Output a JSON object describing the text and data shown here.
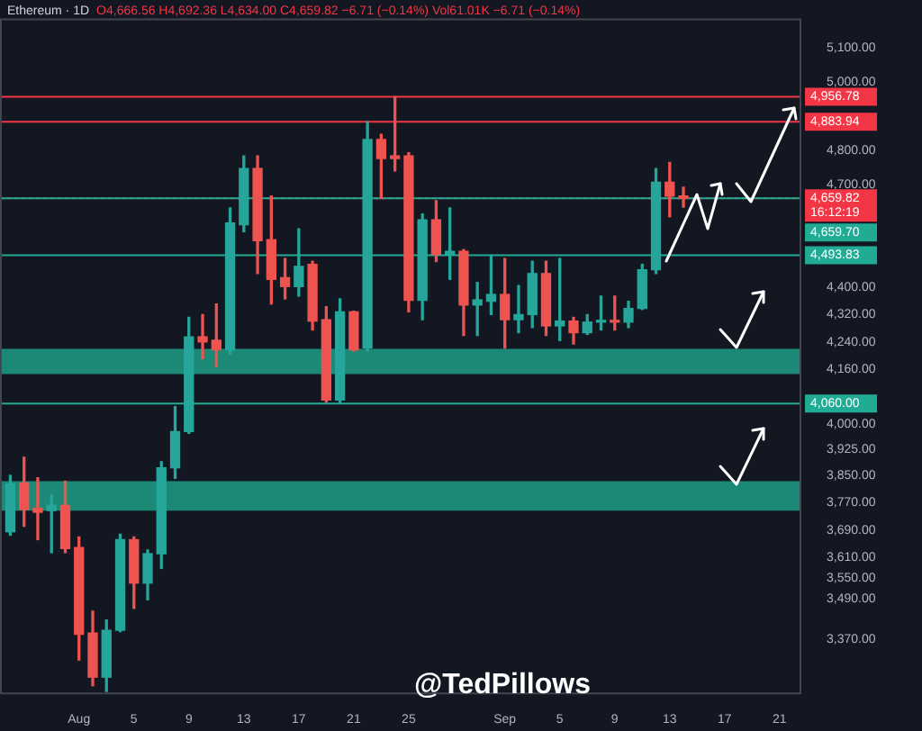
{
  "chart_data": {
    "type": "candlestick",
    "title": "Ethereum · 1D",
    "subtitle": "O4,666.56 H4,692.36 L4,634.00 C4,659.82 −6.71 (−0.14%) Vol61.01K −6.71 (−0.14%)",
    "x": [
      "--07-27",
      "--07-28",
      "--07-29",
      "--07-30",
      "--07-31",
      "--08-01",
      "--08-02",
      "--08-03",
      "--08-04",
      "--08-05",
      "--08-06",
      "--08-07",
      "--08-08",
      "--08-09",
      "--08-10",
      "--08-11",
      "--08-12",
      "--08-13",
      "--08-14",
      "--08-15",
      "--08-16",
      "--08-17",
      "--08-18",
      "--08-19",
      "--08-20",
      "--08-21",
      "--08-22",
      "--08-23",
      "--08-24",
      "--08-25",
      "--08-26",
      "--08-27",
      "--08-28",
      "--08-29",
      "--08-30",
      "--08-31",
      "--09-01",
      "--09-02",
      "--09-03",
      "--09-04",
      "--09-05",
      "--09-06",
      "--09-07",
      "--09-08",
      "--09-09",
      "--09-10",
      "--09-11",
      "--09-12",
      "--09-13",
      "--09-14"
    ],
    "ohlc": [
      [
        3685,
        3850,
        3675,
        3825
      ],
      [
        3828,
        3903,
        3701,
        3750
      ],
      [
        3754,
        3843,
        3662,
        3742
      ],
      [
        3747,
        3793,
        3624,
        3762
      ],
      [
        3762,
        3833,
        3624,
        3636
      ],
      [
        3639,
        3670,
        3310,
        3385
      ],
      [
        3389,
        3453,
        3235,
        3260
      ],
      [
        3260,
        3427,
        3218,
        3397
      ],
      [
        3397,
        3678,
        3393,
        3662
      ],
      [
        3662,
        3670,
        3461,
        3535
      ],
      [
        3535,
        3632,
        3486,
        3621
      ],
      [
        3621,
        3890,
        3578,
        3872
      ],
      [
        3872,
        4051,
        3841,
        3978
      ],
      [
        3978,
        4312,
        3973,
        4255
      ],
      [
        4255,
        4320,
        4191,
        4240
      ],
      [
        4245,
        4351,
        4168,
        4217
      ],
      [
        4217,
        4632,
        4205,
        4588
      ],
      [
        4583,
        4784,
        4562,
        4747
      ],
      [
        4747,
        4784,
        4440,
        4536
      ],
      [
        4539,
        4667,
        4351,
        4423
      ],
      [
        4428,
        4484,
        4366,
        4402
      ],
      [
        4402,
        4571,
        4374,
        4461
      ],
      [
        4467,
        4476,
        4275,
        4301
      ],
      [
        4305,
        4343,
        4064,
        4070
      ],
      [
        4070,
        4366,
        4060,
        4328
      ],
      [
        4328,
        4330,
        4214,
        4217
      ],
      [
        4222,
        4883.94,
        4214,
        4832
      ],
      [
        4832,
        4847,
        4660,
        4776
      ],
      [
        4784,
        4956.78,
        4740,
        4776
      ],
      [
        4784,
        4793,
        4328,
        4362
      ],
      [
        4362,
        4614,
        4305,
        4597
      ],
      [
        4597,
        4653,
        4475,
        4496
      ],
      [
        4496,
        4632,
        4423,
        4505
      ],
      [
        4505,
        4510,
        4259,
        4348
      ],
      [
        4348,
        4414,
        4259,
        4363
      ],
      [
        4359,
        4493.83,
        4320,
        4379
      ],
      [
        4379,
        4484,
        4222,
        4305
      ],
      [
        4305,
        4405,
        4267,
        4320
      ],
      [
        4320,
        4476,
        4282,
        4440
      ],
      [
        4440,
        4476,
        4259,
        4287
      ],
      [
        4287,
        4484,
        4244,
        4301
      ],
      [
        4301,
        4312,
        4234,
        4267
      ],
      [
        4267,
        4320,
        4262,
        4298
      ],
      [
        4298,
        4374,
        4275,
        4301
      ],
      [
        4301,
        4374,
        4275,
        4298
      ],
      [
        4298,
        4359,
        4282,
        4338
      ],
      [
        4338,
        4467,
        4335,
        4451
      ],
      [
        4451,
        4747,
        4440,
        4707
      ],
      [
        4707,
        4765,
        4606,
        4666.56
      ],
      [
        4666.56,
        4692.36,
        4634.0,
        4659.82
      ]
    ],
    "colors": [
      "#26a69a",
      "#ef5350",
      "#ef5350",
      "#26a69a",
      "#ef5350",
      "#ef5350",
      "#ef5350",
      "#26a69a",
      "#26a69a",
      "#ef5350",
      "#26a69a",
      "#26a69a",
      "#26a69a",
      "#26a69a",
      "#ef5350",
      "#ef5350",
      "#26a69a",
      "#26a69a",
      "#ef5350",
      "#ef5350",
      "#ef5350",
      "#26a69a",
      "#ef5350",
      "#ef5350",
      "#26a69a",
      "#ef5350",
      "#26a69a",
      "#ef5350",
      "#ef5350",
      "#ef5350",
      "#26a69a",
      "#ef5350",
      "#26a69a",
      "#ef5350",
      "#26a69a",
      "#26a69a",
      "#ef5350",
      "#26a69a",
      "#26a69a",
      "#ef5350",
      "#26a69a",
      "#ef5350",
      "#26a69a",
      "#26a69a",
      "#ef5350",
      "#26a69a",
      "#26a69a",
      "#26a69a",
      "#ef5350",
      "#ef5350"
    ],
    "xlim": [
      "--07-26T06:00",
      "--09-22T14:00"
    ],
    "xticks": [
      {
        "value": "--08-01",
        "label": "Aug"
      },
      {
        "value": "--08-05",
        "label": "5"
      },
      {
        "value": "--08-09",
        "label": "9"
      },
      {
        "value": "--08-13",
        "label": "13"
      },
      {
        "value": "--08-17",
        "label": "17"
      },
      {
        "value": "--08-21",
        "label": "21"
      },
      {
        "value": "--08-25",
        "label": "25"
      },
      {
        "value": "--09-01",
        "label": "Sep"
      },
      {
        "value": "--09-05",
        "label": "5"
      },
      {
        "value": "--09-09",
        "label": "9"
      },
      {
        "value": "--09-13",
        "label": "13"
      },
      {
        "value": "--09-17",
        "label": "17"
      },
      {
        "value": "--09-21",
        "label": "21"
      }
    ],
    "ylim": [
      3210,
      5186
    ],
    "yticks": [
      {
        "value": 5100,
        "label": "5,100.00"
      },
      {
        "value": 5000,
        "label": "5,000.00"
      },
      {
        "value": 4800,
        "label": "4,800.00"
      },
      {
        "value": 4700,
        "label": "4,700.00"
      },
      {
        "value": 4400,
        "label": "4,400.00"
      },
      {
        "value": 4320,
        "label": "4,320.00"
      },
      {
        "value": 4240,
        "label": "4,240.00"
      },
      {
        "value": 4160,
        "label": "4,160.00"
      },
      {
        "value": 4000,
        "label": "4,000.00"
      },
      {
        "value": 3925,
        "label": "3,925.00"
      },
      {
        "value": 3850,
        "label": "3,850.00"
      },
      {
        "value": 3770,
        "label": "3,770.00"
      },
      {
        "value": 3690,
        "label": "3,690.00"
      },
      {
        "value": 3610,
        "label": "3,610.00"
      },
      {
        "value": 3550,
        "label": "3,550.00"
      },
      {
        "value": 3490,
        "label": "3,490.00"
      },
      {
        "value": 3370,
        "label": "3,370.00"
      }
    ],
    "ref_lines": [
      {
        "axis": "y",
        "value": 4956.78,
        "label": "4,956.78",
        "color": "#f23645"
      },
      {
        "axis": "y",
        "value": 4883.94,
        "label": "4,883.94",
        "color": "#f23645"
      },
      {
        "axis": "y",
        "value": 4659.82,
        "label": "4,659.82 16:12:19",
        "color": "#f23645",
        "line_style": "dotted"
      },
      {
        "axis": "y",
        "value": 4659.7,
        "label": "4,659.70",
        "color": "#22ab94"
      },
      {
        "axis": "y",
        "value": 4493.83,
        "label": "4,493.83",
        "color": "#22ab94"
      },
      {
        "axis": "y",
        "value": 4060.0,
        "label": "4,060.00",
        "color": "#22ab94"
      }
    ],
    "bands": [
      {
        "axis": "y",
        "from": 4146,
        "to": 4220,
        "color": "#1f9e86"
      },
      {
        "axis": "y",
        "from": 3747,
        "to": 3833,
        "color": "#1f9e86"
      }
    ],
    "annotations": [
      "@TedPillows"
    ]
  }
}
